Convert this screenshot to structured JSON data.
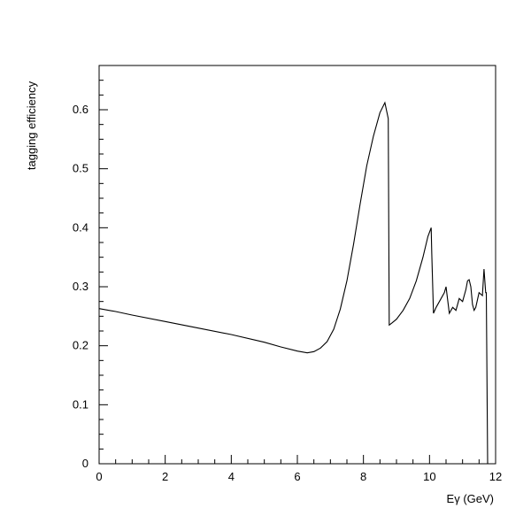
{
  "chart_data": {
    "type": "line",
    "title": "",
    "xlabel": "Eγ (GeV)",
    "ylabel": "tagging efficiency",
    "xlim": [
      0,
      12
    ],
    "ylim": [
      0,
      0.675
    ],
    "grid": false,
    "x_ticks": [
      0,
      2,
      4,
      6,
      8,
      10,
      12
    ],
    "x_tick_labels": [
      "0",
      "2",
      "4",
      "6",
      "8",
      "10",
      "12"
    ],
    "y_ticks": [
      0,
      0.1,
      0.2,
      0.3,
      0.4,
      0.5,
      0.6
    ],
    "y_tick_labels": [
      "0",
      "0.1",
      "0.2",
      "0.3",
      "0.4",
      "0.5",
      "0.6"
    ],
    "series": [
      {
        "color": "#000000",
        "x": [
          0.0,
          0.5,
          1.0,
          2.0,
          3.0,
          4.0,
          5.0,
          5.5,
          6.0,
          6.3,
          6.5,
          6.7,
          6.9,
          7.1,
          7.3,
          7.5,
          7.7,
          7.9,
          8.1,
          8.3,
          8.5,
          8.65,
          8.75,
          8.78,
          8.85,
          9.0,
          9.2,
          9.4,
          9.6,
          9.8,
          9.95,
          10.05,
          10.07,
          10.12,
          10.2,
          10.3,
          10.45,
          10.5,
          10.6,
          10.7,
          10.8,
          10.9,
          11.0,
          11.1,
          11.15,
          11.2,
          11.25,
          11.3,
          11.35,
          11.4,
          11.5,
          11.6,
          11.65,
          11.7,
          11.72,
          11.76
        ],
        "y": [
          0.263,
          0.258,
          0.252,
          0.241,
          0.23,
          0.219,
          0.206,
          0.198,
          0.191,
          0.188,
          0.19,
          0.196,
          0.207,
          0.228,
          0.262,
          0.31,
          0.372,
          0.44,
          0.505,
          0.555,
          0.595,
          0.612,
          0.585,
          0.235,
          0.238,
          0.245,
          0.26,
          0.28,
          0.31,
          0.35,
          0.385,
          0.4,
          0.355,
          0.255,
          0.265,
          0.275,
          0.29,
          0.3,
          0.255,
          0.265,
          0.26,
          0.28,
          0.275,
          0.295,
          0.31,
          0.312,
          0.3,
          0.27,
          0.26,
          0.265,
          0.29,
          0.285,
          0.33,
          0.29,
          0.29,
          0.0
        ]
      }
    ]
  }
}
